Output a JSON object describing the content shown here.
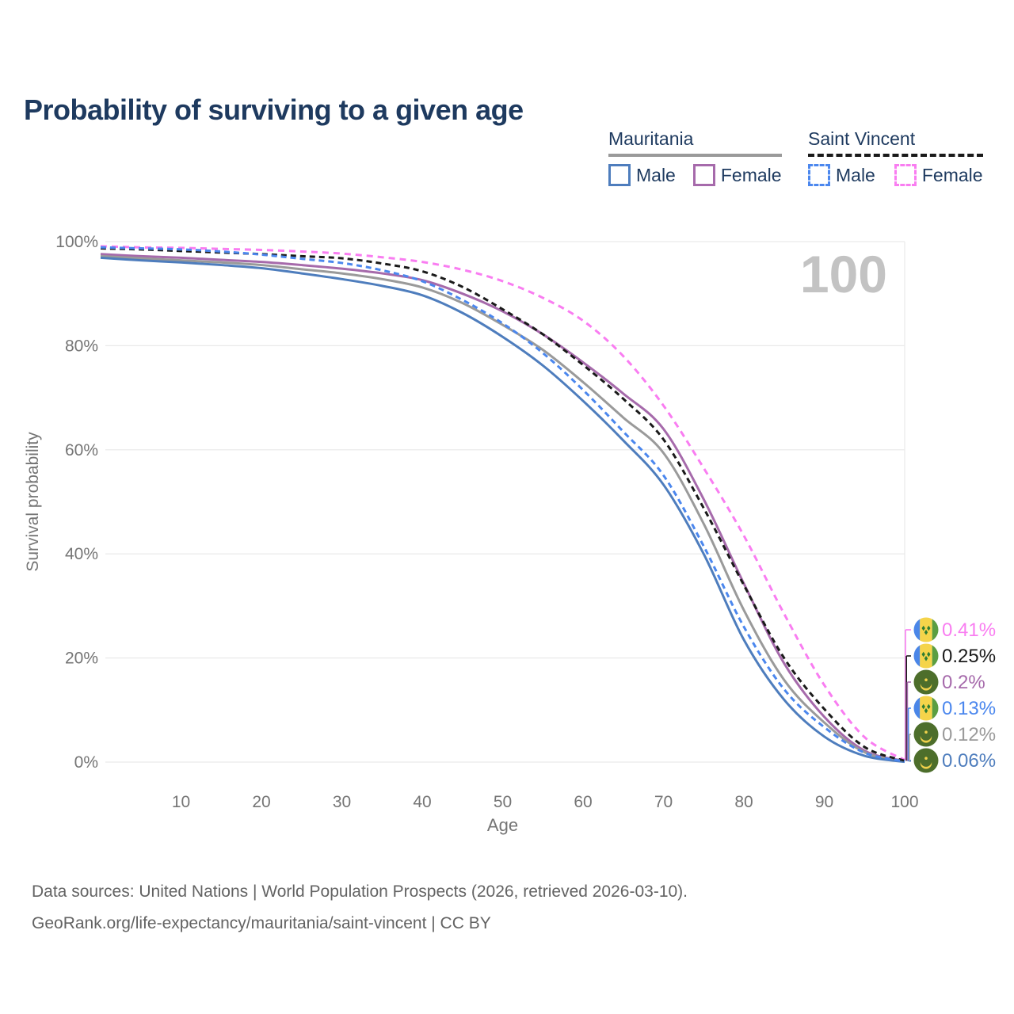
{
  "title": {
    "text": "Probability of surviving to a given age",
    "color": "#1e3a5f"
  },
  "watermark": "100",
  "colors": {
    "axis_text": "#757575",
    "gridline": "#e9e9e9",
    "watermark": "#c3c3c3",
    "legend_text": "#1e3a5f",
    "mauritania_line": "#9a9a9a",
    "saint_vincent_line": "#1a1a1a"
  },
  "legend": {
    "groups": [
      {
        "label": "Mauritania",
        "line_style": "solid",
        "line_color": "#9a9a9a",
        "items": [
          {
            "label": "Male",
            "color": "#4e7dbd",
            "dashed": false
          },
          {
            "label": "Female",
            "color": "#a66aab",
            "dashed": false
          }
        ]
      },
      {
        "label": "Saint Vincent",
        "line_style": "dashed",
        "line_color": "#1a1a1a",
        "items": [
          {
            "label": "Male",
            "color": "#4b87ee",
            "dashed": true
          },
          {
            "label": "Female",
            "color": "#f97df1",
            "dashed": true
          }
        ]
      }
    ]
  },
  "footer": {
    "line1": "Data sources: United Nations | World Population Prospects (2026, retrieved 2026-03-10).",
    "line2": "GeoRank.org/life-expectancy/mauritania/saint-vincent | CC BY"
  },
  "chart_data": {
    "type": "line",
    "title": "Probability of surviving to a given age",
    "xlabel": "Age",
    "ylabel": "Survival probability",
    "xlim": [
      0,
      100
    ],
    "ylim": [
      0,
      100
    ],
    "x_ticks": [
      10,
      20,
      30,
      40,
      50,
      60,
      70,
      80,
      90,
      100
    ],
    "y_ticks": [
      0,
      20,
      40,
      60,
      80,
      100
    ],
    "y_tick_suffix": "%",
    "grid": true,
    "x": [
      0,
      5,
      10,
      15,
      20,
      25,
      30,
      35,
      40,
      45,
      50,
      55,
      60,
      65,
      70,
      75,
      80,
      85,
      90,
      95,
      100
    ],
    "series": [
      {
        "id": "sv-female",
        "name": "Saint Vincent Female",
        "color": "#f97df1",
        "dash": "8 6",
        "flag": "sv",
        "end_label": "0.41%",
        "end_value": 0.41,
        "values": [
          99.1,
          98.9,
          98.8,
          98.6,
          98.4,
          98.1,
          97.7,
          97.0,
          96.1,
          94.6,
          92.4,
          89.2,
          84.8,
          78.0,
          68.5,
          56.5,
          43.5,
          28.5,
          14.8,
          4.8,
          0.41
        ]
      },
      {
        "id": "sv-total",
        "name": "Saint Vincent",
        "color": "#1a1a1a",
        "dash": "7 5",
        "flag": "sv",
        "end_label": "0.25%",
        "end_value": 0.25,
        "values": [
          98.7,
          98.5,
          98.2,
          97.9,
          97.6,
          97.2,
          96.8,
          95.8,
          94.3,
          91.3,
          87.0,
          82.2,
          76.3,
          69.8,
          62.0,
          48.8,
          34.0,
          20.0,
          10.2,
          2.9,
          0.25
        ]
      },
      {
        "id": "mr-female",
        "name": "Mauritania Female",
        "color": "#a66aab",
        "dash": null,
        "flag": "mr",
        "end_label": "0.2%",
        "end_value": 0.2,
        "values": [
          97.6,
          97.2,
          96.9,
          96.5,
          96.1,
          95.5,
          94.8,
          93.9,
          92.6,
          90.0,
          86.6,
          82.2,
          76.8,
          70.8,
          64.0,
          50.5,
          34.3,
          19.0,
          8.7,
          2.2,
          0.2
        ]
      },
      {
        "id": "sv-male",
        "name": "Saint Vincent Male",
        "color": "#4b87ee",
        "dash": "7 5",
        "flag": "sv",
        "end_label": "0.13%",
        "end_value": 0.13,
        "values": [
          98.9,
          98.7,
          98.5,
          98.1,
          97.5,
          96.7,
          95.9,
          94.5,
          92.4,
          88.8,
          84.3,
          78.6,
          71.5,
          63.5,
          55.1,
          41.5,
          26.0,
          14.0,
          6.7,
          1.8,
          0.13
        ]
      },
      {
        "id": "mr-total",
        "name": "Mauritania",
        "color": "#9a9a9a",
        "dash": null,
        "flag": "mr",
        "end_label": "0.12%",
        "end_value": 0.12,
        "values": [
          97.2,
          96.8,
          96.4,
          96.0,
          95.5,
          94.7,
          93.9,
          92.8,
          91.2,
          88.2,
          84.0,
          79.2,
          73.0,
          66.2,
          59.4,
          45.8,
          29.2,
          15.8,
          7.6,
          1.9,
          0.12
        ]
      },
      {
        "id": "mr-male",
        "name": "Mauritania Male",
        "color": "#4e7dbd",
        "dash": null,
        "flag": "mr",
        "end_label": "0.06%",
        "end_value": 0.06,
        "values": [
          96.9,
          96.4,
          96.0,
          95.5,
          94.9,
          93.9,
          92.8,
          91.5,
          89.7,
          86.3,
          81.7,
          76.2,
          69.4,
          61.8,
          53.3,
          40.0,
          23.5,
          12.0,
          4.9,
          1.2,
          0.06
        ]
      }
    ],
    "flag_colors": {
      "sv_blue": "#4a86e8",
      "sv_yellow": "#f5d44a",
      "sv_green": "#5b9e42",
      "sv_diamond": "#2e7d32",
      "mr_green": "#4d6e2b",
      "mr_yellow": "#f0d14b"
    }
  }
}
